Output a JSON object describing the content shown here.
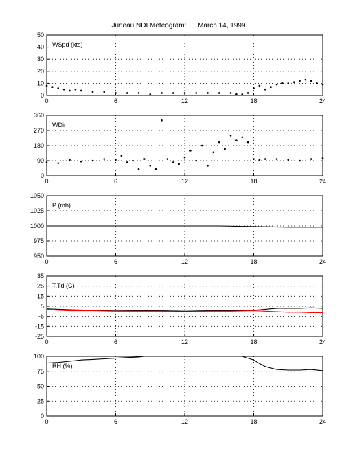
{
  "title": {
    "station": "Juneau NDI Meteogram:",
    "date": "March 14, 1999"
  },
  "chart_data": [
    {
      "type": "scatter",
      "panel_label": "WSpd (kts)",
      "xlim": [
        0,
        24
      ],
      "ylim": [
        0,
        50
      ],
      "xticks": [
        "0",
        "6",
        "12",
        "18",
        "24"
      ],
      "yticks": [
        "0",
        "10",
        "20",
        "30",
        "40",
        "50"
      ],
      "grid": true,
      "series": [
        {
          "color": "#000000",
          "x": [
            0,
            0.5,
            1,
            1.5,
            2,
            2.5,
            3,
            4,
            5,
            6,
            7,
            8,
            9,
            10,
            11,
            12,
            13,
            14,
            15,
            16,
            16.5,
            17,
            17.5,
            18,
            18.5,
            19,
            19.5,
            20,
            20.5,
            21,
            21.5,
            22,
            22.5,
            23,
            23.5,
            24
          ],
          "y": [
            8,
            7,
            6,
            5,
            4,
            5,
            4,
            3,
            3,
            2,
            2,
            2,
            1,
            2,
            2,
            2,
            2,
            2,
            2,
            2,
            1,
            1,
            2,
            6,
            8,
            5,
            7,
            9,
            10,
            10,
            11,
            12,
            13,
            12,
            10,
            9
          ]
        }
      ]
    },
    {
      "type": "scatter",
      "panel_label": "WDir",
      "xlim": [
        0,
        24
      ],
      "ylim": [
        0,
        360
      ],
      "xticks": [
        "0",
        "6",
        "12",
        "18",
        "24"
      ],
      "yticks": [
        "0",
        "90",
        "180",
        "270",
        "360"
      ],
      "grid": true,
      "series": [
        {
          "color": "#000000",
          "x": [
            0,
            1,
            2,
            3,
            4,
            5,
            6,
            6.5,
            7,
            7.5,
            8,
            8.5,
            9,
            9.5,
            10,
            10.5,
            11,
            11.5,
            12,
            12.5,
            13,
            13.5,
            14,
            14.5,
            15,
            15.5,
            16,
            16.5,
            17,
            17.5,
            18,
            18.5,
            19,
            20,
            21,
            22,
            23,
            24
          ],
          "y": [
            80,
            75,
            95,
            85,
            90,
            100,
            95,
            120,
            80,
            90,
            40,
            100,
            60,
            40,
            330,
            100,
            80,
            70,
            110,
            150,
            90,
            180,
            60,
            140,
            200,
            160,
            240,
            210,
            230,
            200,
            100,
            95,
            100,
            100,
            95,
            90,
            100,
            105
          ]
        }
      ]
    },
    {
      "type": "line",
      "panel_label": "P (mb)",
      "xlim": [
        0,
        24
      ],
      "ylim": [
        950,
        1050
      ],
      "xticks": [
        "0",
        "6",
        "12",
        "18",
        "24"
      ],
      "yticks": [
        "950",
        "975",
        "1000",
        "1025",
        "1050"
      ],
      "grid": true,
      "series": [
        {
          "color": "#000000",
          "x": [
            0,
            3,
            6,
            9,
            12,
            15,
            18,
            21,
            24
          ],
          "y": [
            1000,
            1000,
            1000,
            1000,
            1000,
            1000,
            999,
            998,
            998
          ]
        }
      ]
    },
    {
      "type": "line",
      "panel_label": "T,Td (C)",
      "xlim": [
        0,
        24
      ],
      "ylim": [
        -25,
        35
      ],
      "xticks": [
        "0",
        "6",
        "12",
        "18",
        "24"
      ],
      "yticks": [
        "-25",
        "-15",
        "-5",
        "5",
        "15",
        "25",
        "35"
      ],
      "grid": true,
      "series": [
        {
          "color": "#000000",
          "x": [
            0,
            1,
            2,
            4,
            6,
            8,
            10,
            12,
            14,
            16,
            17,
            18,
            19,
            20,
            21,
            22,
            23,
            24
          ],
          "y": [
            2.5,
            2,
            1.5,
            1,
            1,
            0.5,
            0.5,
            0,
            0.5,
            0.5,
            0.5,
            1,
            2,
            3,
            3,
            3,
            3.5,
            3
          ]
        },
        {
          "color": "#ff0000",
          "x": [
            0,
            2,
            4,
            6,
            8,
            10,
            12,
            14,
            16,
            18,
            19,
            20,
            21,
            22,
            23,
            24
          ],
          "y": [
            1.5,
            0.5,
            0.5,
            0,
            0,
            0,
            -0.5,
            0,
            0,
            0.5,
            0,
            -0.5,
            -1,
            -1,
            -1.5,
            -1.5
          ]
        }
      ]
    },
    {
      "type": "line",
      "panel_label": "RH (%)",
      "xlim": [
        0,
        24
      ],
      "ylim": [
        0,
        100
      ],
      "xticks": [
        "0",
        "6",
        "12",
        "18",
        "24"
      ],
      "yticks": [
        "0",
        "25",
        "50",
        "75",
        "100"
      ],
      "grid": true,
      "series": [
        {
          "color": "#000000",
          "x": [
            0,
            1,
            2,
            3,
            4,
            5,
            6,
            7,
            8,
            8.5,
            17,
            18,
            18.5,
            19,
            20,
            21,
            22,
            23,
            24
          ],
          "y": [
            89,
            90,
            92,
            94,
            95,
            96,
            97,
            98,
            99,
            100,
            100,
            94,
            88,
            83,
            78,
            77,
            77,
            78,
            76
          ]
        }
      ]
    }
  ]
}
